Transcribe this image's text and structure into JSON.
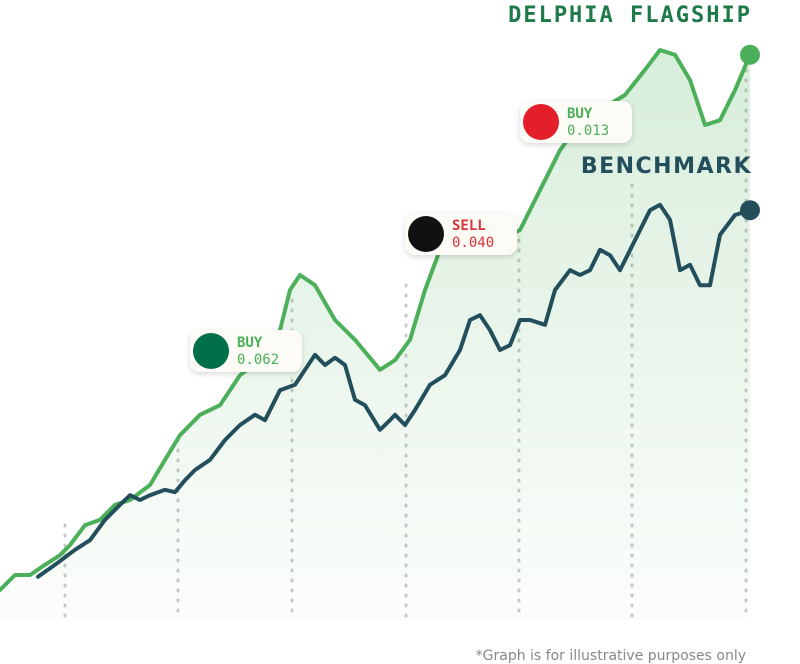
{
  "chart_data": {
    "type": "line",
    "xlim": [
      0,
      800
    ],
    "ylim": [
      0,
      100
    ],
    "series": [
      {
        "name": "DELPHIA FLAGSHIP",
        "color": "#4caf5a",
        "label_color": "#1f7a4a",
        "x": [
          0,
          15,
          30,
          45,
          60,
          70,
          85,
          100,
          115,
          130,
          150,
          165,
          180,
          200,
          220,
          240,
          260,
          280,
          290,
          300,
          315,
          335,
          355,
          380,
          395,
          410,
          425,
          440,
          460,
          480,
          500,
          520,
          545,
          560,
          575,
          600,
          625,
          645,
          660,
          675,
          690,
          705,
          720,
          735,
          750
        ],
        "values": [
          5,
          7.5,
          7.5,
          9.2,
          10.8,
          12.5,
          15.8,
          16.7,
          19.2,
          20,
          22.5,
          26.7,
          30.8,
          34.2,
          35.8,
          40.8,
          43.3,
          48.3,
          55,
          57.5,
          55.8,
          50,
          46.7,
          41.7,
          43.3,
          46.7,
          55,
          61.7,
          63.3,
          63.3,
          63.3,
          65,
          73.3,
          78.3,
          81.7,
          85,
          87.5,
          91.7,
          95,
          94.2,
          90,
          82.5,
          83.3,
          88.3,
          94.2
        ]
      },
      {
        "name": "BENCHMARK",
        "color": "#234f5c",
        "label_color": "#234f5c",
        "x": [
          38,
          55,
          75,
          90,
          105,
          120,
          130,
          140,
          150,
          165,
          175,
          185,
          195,
          210,
          225,
          240,
          255,
          265,
          280,
          295,
          305,
          315,
          325,
          335,
          345,
          355,
          365,
          380,
          390,
          395,
          405,
          415,
          430,
          445,
          460,
          470,
          480,
          490,
          500,
          510,
          520,
          530,
          545,
          555,
          570,
          580,
          590,
          600,
          610,
          620,
          635,
          650,
          660,
          670,
          680,
          690,
          700,
          710,
          720,
          735,
          750
        ],
        "values": [
          7.2,
          9.2,
          11.7,
          13.3,
          16.7,
          19.2,
          20.8,
          20,
          20.8,
          21.7,
          21.3,
          23.3,
          25,
          26.7,
          30,
          32.5,
          34.2,
          33.3,
          38.3,
          39.2,
          41.7,
          44.2,
          42.5,
          43.7,
          42.5,
          36.7,
          35.8,
          31.7,
          33.3,
          34.2,
          32.5,
          35,
          39.2,
          40.8,
          45,
          50,
          50.8,
          48.3,
          45,
          45.8,
          50,
          50,
          49.2,
          55,
          58.3,
          57.5,
          58.3,
          61.7,
          60.8,
          58.3,
          63.3,
          68.3,
          69.2,
          66.7,
          58.3,
          59.2,
          55.8,
          55.8,
          64.2,
          67.5,
          68.3
        ]
      }
    ],
    "annotations": [
      {
        "action": "BUY",
        "amount": "0.062",
        "color": "#4caf5a",
        "logo_color": "#00704a"
      },
      {
        "action": "SELL",
        "amount": "0.040",
        "color": "#d9333b",
        "logo_color": "#111111"
      },
      {
        "action": "BUY",
        "amount": "0.013",
        "color": "#4caf5a",
        "logo_color": "#e41e2b"
      }
    ],
    "footnote": "*Graph is for illustrative purposes only"
  }
}
